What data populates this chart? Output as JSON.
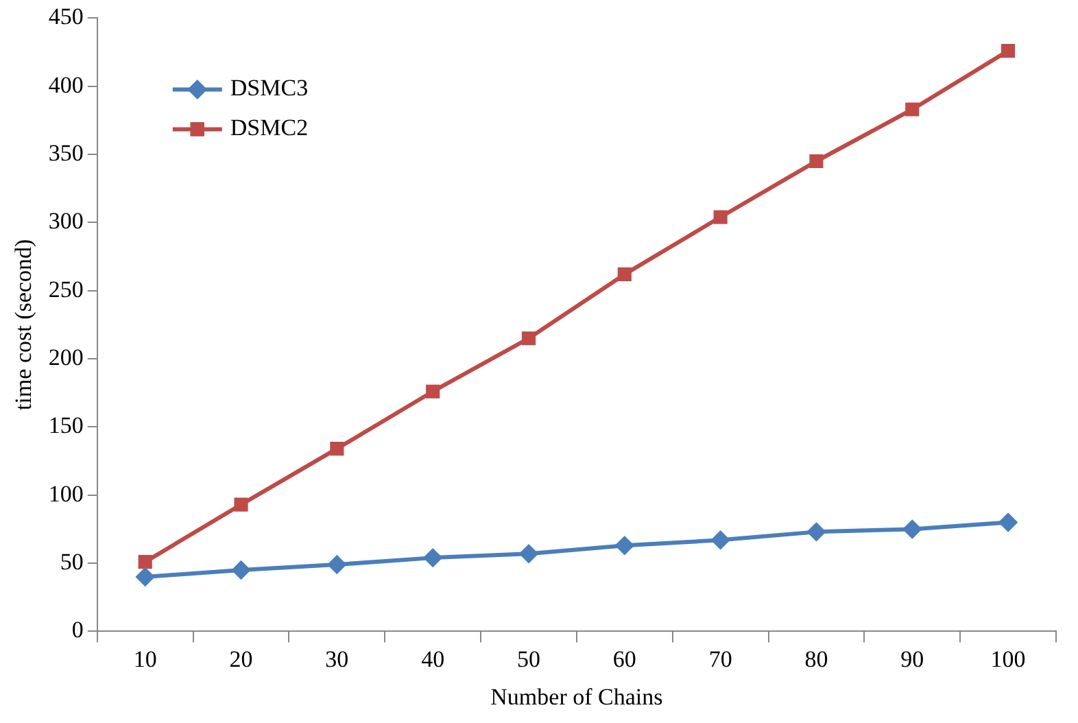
{
  "chart_data": {
    "type": "line",
    "xlabel": "Number of Chains",
    "ylabel": "time cost (second)",
    "categories": [
      "10",
      "20",
      "30",
      "40",
      "50",
      "60",
      "70",
      "80",
      "90",
      "100"
    ],
    "series": [
      {
        "name": "DSMC3",
        "color": "#4a7ebb",
        "marker": "diamond",
        "values": [
          40,
          45,
          49,
          54,
          57,
          63,
          67,
          73,
          75,
          80
        ]
      },
      {
        "name": "DSMC2",
        "color": "#be4b48",
        "marker": "square",
        "values": [
          51,
          93,
          134,
          176,
          215,
          262,
          304,
          345,
          383,
          426
        ]
      }
    ],
    "ylim": [
      0,
      450
    ],
    "yticks": [
      0,
      50,
      100,
      150,
      200,
      250,
      300,
      350,
      400,
      450
    ],
    "grid": false,
    "legend": "top left",
    "line_style": "solid"
  }
}
